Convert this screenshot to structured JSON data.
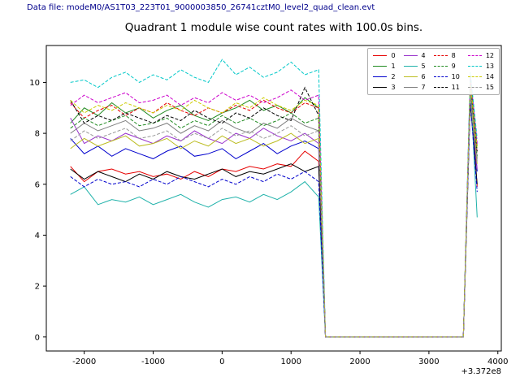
{
  "header": {
    "text": "Data file: modeM0/AS1T03_223T01_9000003850_26741cztM0_level2_quad_clean.evt"
  },
  "chart_data": {
    "type": "line",
    "title": "Quadrant 1 module wise count rates with 100.0s bins.",
    "xlabel": "",
    "ylabel": "",
    "x_offset_label": "+3.372e8",
    "xlim": [
      -2550,
      4050
    ],
    "ylim": [
      -0.55,
      11.45
    ],
    "x_ticks": [
      -2000,
      -1000,
      0,
      1000,
      2000,
      3000,
      4000
    ],
    "y_ticks": [
      0,
      2,
      4,
      6,
      8,
      10
    ],
    "grid": false,
    "legend_position": "upper right",
    "x": [
      -2200,
      -2000,
      -1800,
      -1600,
      -1400,
      -1200,
      -1000,
      -800,
      -600,
      -400,
      -200,
      0,
      200,
      400,
      600,
      800,
      1000,
      1200,
      1400,
      1500,
      1600,
      1800,
      2000,
      2200,
      2400,
      2600,
      2800,
      3000,
      3200,
      3400,
      3500,
      3600,
      3700
    ],
    "series": [
      {
        "name": "0",
        "color": "#e60000",
        "dash": "solid",
        "values": [
          6.7,
          6.1,
          6.5,
          6.6,
          6.4,
          6.5,
          6.3,
          6.4,
          6.2,
          6.5,
          6.3,
          6.6,
          6.5,
          6.7,
          6.6,
          6.8,
          6.7,
          7.3,
          6.9,
          0,
          0,
          0,
          0,
          0,
          0,
          0,
          0,
          0,
          0,
          0,
          0,
          9.8,
          5.9
        ]
      },
      {
        "name": "1",
        "color": "#228b22",
        "dash": "solid",
        "values": [
          8.4,
          9.0,
          8.7,
          9.2,
          8.8,
          9.0,
          8.6,
          8.9,
          9.1,
          8.7,
          8.5,
          8.8,
          9.0,
          9.3,
          8.9,
          9.1,
          8.8,
          9.4,
          9.0,
          0,
          0,
          0,
          0,
          0,
          0,
          0,
          0,
          0,
          0,
          0,
          0,
          10.2,
          7.5
        ]
      },
      {
        "name": "2",
        "color": "#0000cd",
        "dash": "solid",
        "values": [
          7.8,
          7.2,
          7.5,
          7.1,
          7.4,
          7.2,
          7.0,
          7.3,
          7.5,
          7.1,
          7.2,
          7.4,
          7.0,
          7.3,
          7.6,
          7.2,
          7.5,
          7.7,
          7.4,
          0,
          0,
          0,
          0,
          0,
          0,
          0,
          0,
          0,
          0,
          0,
          0,
          9.5,
          6.5
        ]
      },
      {
        "name": "3",
        "color": "#000000",
        "dash": "solid",
        "values": [
          6.6,
          6.2,
          6.5,
          6.3,
          6.1,
          6.4,
          6.2,
          6.5,
          6.3,
          6.2,
          6.4,
          6.6,
          6.3,
          6.5,
          6.4,
          6.6,
          6.8,
          6.5,
          6.7,
          0,
          0,
          0,
          0,
          0,
          0,
          0,
          0,
          0,
          0,
          0,
          0,
          9.2,
          6.0
        ]
      },
      {
        "name": "4",
        "color": "#9932cc",
        "dash": "solid",
        "values": [
          8.6,
          7.6,
          7.9,
          7.7,
          8.0,
          7.8,
          7.6,
          7.9,
          7.7,
          8.1,
          7.8,
          7.6,
          8.0,
          7.8,
          8.2,
          7.9,
          7.7,
          8.0,
          7.6,
          0,
          0,
          0,
          0,
          0,
          0,
          0,
          0,
          0,
          0,
          0,
          0,
          9.6,
          6.6
        ]
      },
      {
        "name": "5",
        "color": "#20b2aa",
        "dash": "solid",
        "values": [
          5.6,
          5.9,
          5.2,
          5.4,
          5.3,
          5.5,
          5.2,
          5.4,
          5.6,
          5.3,
          5.1,
          5.4,
          5.5,
          5.3,
          5.6,
          5.4,
          5.7,
          6.1,
          5.5,
          0,
          0,
          0,
          0,
          0,
          0,
          0,
          0,
          0,
          0,
          0,
          0,
          9.9,
          4.7
        ]
      },
      {
        "name": "6",
        "color": "#bcbd22",
        "dash": "solid",
        "values": [
          7.4,
          7.8,
          7.5,
          7.7,
          7.9,
          7.5,
          7.6,
          7.8,
          7.4,
          7.7,
          7.5,
          7.9,
          7.6,
          7.8,
          7.5,
          7.7,
          8.0,
          7.6,
          7.8,
          0,
          0,
          0,
          0,
          0,
          0,
          0,
          0,
          0,
          0,
          0,
          0,
          9.4,
          6.8
        ]
      },
      {
        "name": "7",
        "color": "#7f7f7f",
        "dash": "solid",
        "values": [
          8.0,
          8.4,
          8.1,
          8.3,
          8.5,
          8.1,
          8.2,
          8.4,
          8.0,
          8.3,
          8.1,
          8.5,
          8.2,
          8.0,
          8.4,
          8.2,
          8.6,
          8.3,
          8.1,
          0,
          0,
          0,
          0,
          0,
          0,
          0,
          0,
          0,
          0,
          0,
          0,
          9.7,
          7.0
        ]
      },
      {
        "name": "8",
        "color": "#e60000",
        "dash": "dashed",
        "values": [
          9.2,
          8.6,
          8.9,
          9.1,
          8.7,
          9.0,
          8.8,
          9.2,
          8.9,
          8.7,
          9.0,
          8.8,
          9.1,
          8.9,
          9.3,
          9.0,
          8.8,
          9.2,
          9.0,
          0,
          0,
          0,
          0,
          0,
          0,
          0,
          0,
          0,
          0,
          0,
          0,
          10.0,
          7.2
        ]
      },
      {
        "name": "9",
        "color": "#228b22",
        "dash": "dashed",
        "values": [
          8.2,
          8.6,
          8.3,
          8.5,
          8.7,
          8.3,
          8.4,
          8.6,
          8.2,
          8.5,
          8.3,
          8.7,
          8.4,
          8.6,
          8.3,
          8.5,
          8.8,
          8.4,
          8.6,
          0,
          0,
          0,
          0,
          0,
          0,
          0,
          0,
          0,
          0,
          0,
          0,
          9.9,
          7.1
        ]
      },
      {
        "name": "10",
        "color": "#0000cd",
        "dash": "dashed",
        "values": [
          6.3,
          5.9,
          6.2,
          6.0,
          6.1,
          5.9,
          6.2,
          6.0,
          6.3,
          6.1,
          5.9,
          6.2,
          6.0,
          6.3,
          6.1,
          6.4,
          6.2,
          6.5,
          6.1,
          0,
          0,
          0,
          0,
          0,
          0,
          0,
          0,
          0,
          0,
          0,
          0,
          9.3,
          5.7
        ]
      },
      {
        "name": "11",
        "color": "#000000",
        "dash": "dashed",
        "values": [
          9.3,
          8.4,
          8.7,
          8.5,
          8.8,
          8.6,
          8.4,
          8.7,
          8.5,
          8.9,
          8.6,
          8.4,
          8.8,
          8.6,
          9.0,
          8.7,
          8.5,
          9.8,
          8.7,
          0,
          0,
          0,
          0,
          0,
          0,
          0,
          0,
          0,
          0,
          0,
          0,
          10.1,
          7.3
        ]
      },
      {
        "name": "12",
        "color": "#cc00cc",
        "dash": "dashed",
        "values": [
          9.1,
          9.5,
          9.2,
          9.4,
          9.6,
          9.2,
          9.3,
          9.5,
          9.1,
          9.4,
          9.2,
          9.6,
          9.3,
          9.5,
          9.2,
          9.4,
          9.7,
          9.3,
          9.5,
          0,
          0,
          0,
          0,
          0,
          0,
          0,
          0,
          0,
          0,
          0,
          0,
          10.3,
          7.6
        ]
      },
      {
        "name": "13",
        "color": "#00c8c8",
        "dash": "dashed",
        "values": [
          10.0,
          10.1,
          9.8,
          10.2,
          10.4,
          10.0,
          10.3,
          10.1,
          10.5,
          10.2,
          10.0,
          10.9,
          10.3,
          10.6,
          10.2,
          10.4,
          10.8,
          10.3,
          10.5,
          0,
          0,
          0,
          0,
          0,
          0,
          0,
          0,
          0,
          0,
          0,
          0,
          10.4,
          7.8
        ]
      },
      {
        "name": "14",
        "color": "#cccc00",
        "dash": "dashed",
        "values": [
          9.3,
          8.8,
          9.1,
          8.9,
          9.2,
          9.0,
          8.8,
          9.1,
          8.9,
          9.3,
          9.0,
          8.8,
          9.2,
          9.0,
          9.4,
          9.1,
          8.9,
          9.3,
          9.1,
          0,
          0,
          0,
          0,
          0,
          0,
          0,
          0,
          0,
          0,
          0,
          0,
          10.0,
          7.4
        ]
      },
      {
        "name": "15",
        "color": "#999999",
        "dash": "dashed",
        "values": [
          7.7,
          8.1,
          7.8,
          8.0,
          8.2,
          7.8,
          7.9,
          8.1,
          7.7,
          8.0,
          7.8,
          8.2,
          7.9,
          8.1,
          7.8,
          8.0,
          8.3,
          7.9,
          8.1,
          0,
          0,
          0,
          0,
          0,
          0,
          0,
          0,
          0,
          0,
          0,
          0,
          9.5,
          6.9
        ]
      }
    ]
  }
}
